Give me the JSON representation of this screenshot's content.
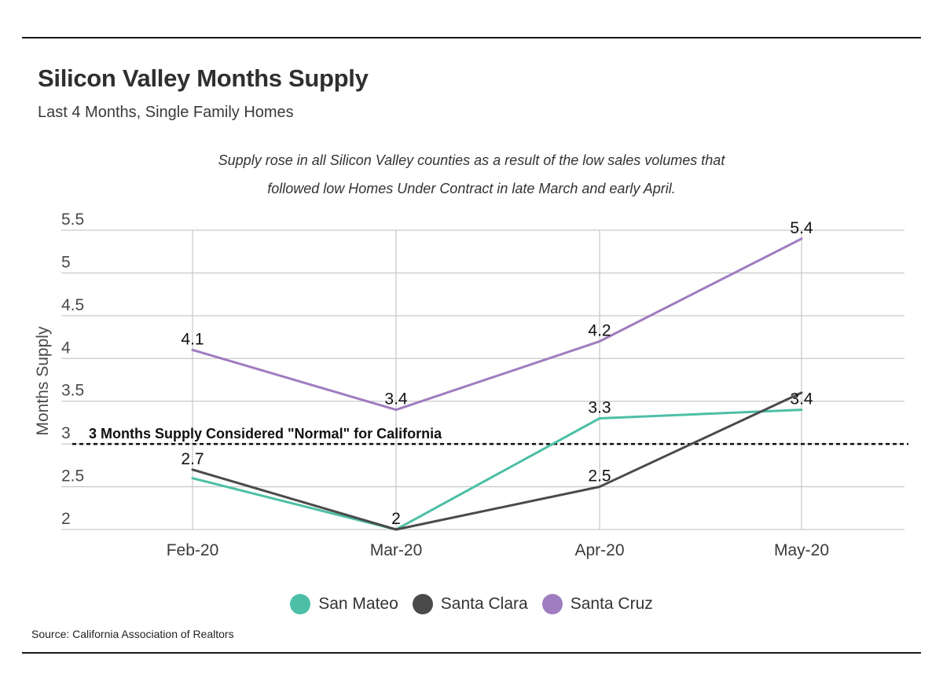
{
  "title": "Silicon Valley Months Supply",
  "subtitle": "Last 4 Months, Single Family Homes",
  "annotation": [
    "Supply rose in all Silicon Valley counties as a result of the low sales volumes that",
    "followed low Homes Under Contract in late March and early April."
  ],
  "source": "Source:  California Association of Realtors",
  "chart_data": {
    "type": "line",
    "categories": [
      "Feb-20",
      "Mar-20",
      "Apr-20",
      "May-20"
    ],
    "ylabel": "Months Supply",
    "xlabel": "",
    "ylim": [
      2,
      5.5
    ],
    "yticks": [
      "2",
      "2.5",
      "3",
      "3.5",
      "4",
      "4.5",
      "5",
      "5.5"
    ],
    "grid": true,
    "legend_position": "bottom-center",
    "reference_line": {
      "value": 3,
      "label": "3 Months Supply Considered \"Normal\" for California",
      "style": "dashed"
    },
    "series": [
      {
        "name": "San Mateo",
        "color": "#4dbfa6",
        "values": [
          2.6,
          2,
          3.3,
          3.4
        ],
        "labels": [
          "",
          "",
          "3.3",
          "3.4"
        ]
      },
      {
        "name": "Santa Clara",
        "color": "#4a4a4a",
        "values": [
          2.7,
          2,
          2.5,
          3.6
        ],
        "labels": [
          "2.7",
          "2",
          "2.5",
          ""
        ]
      },
      {
        "name": "Santa Cruz",
        "color": "#a07cc0",
        "values": [
          4.1,
          3.4,
          4.2,
          5.4
        ],
        "labels": [
          "4.1",
          "3.4",
          "4.2",
          "5.4"
        ]
      }
    ]
  }
}
